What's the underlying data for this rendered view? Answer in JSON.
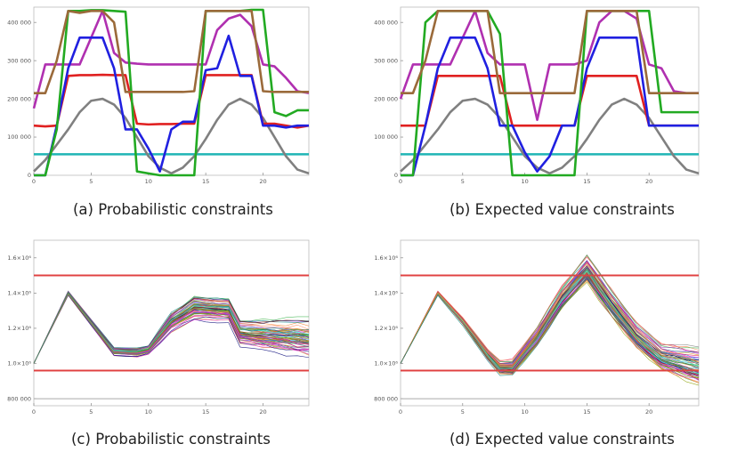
{
  "captions": {
    "a": "(a) Probabilistic constraints",
    "b": "(b) Expected value constraints",
    "c": "(c) Probabilistic constraints",
    "d": "(d) Expected value constraints"
  },
  "chart_data": [
    {
      "id": "a",
      "type": "line",
      "title": "",
      "xlabel": "",
      "ylabel": "",
      "xlim": [
        0,
        24
      ],
      "ylim": [
        0,
        440000
      ],
      "xticks": [
        "0",
        "5",
        "10",
        "15",
        "20"
      ],
      "yticks": [
        "0",
        "100 000",
        "200 000",
        "300 000",
        "400 000"
      ],
      "grid": false,
      "series": [
        {
          "color": "#1fb5b5",
          "x": [
            0,
            24
          ],
          "y": [
            55000,
            55000
          ]
        },
        {
          "color": "#808080",
          "x": [
            0,
            1,
            2,
            3,
            4,
            5,
            6,
            7,
            8,
            9,
            10,
            11,
            12,
            13,
            14,
            15,
            16,
            17,
            18,
            19,
            20,
            21,
            22,
            23,
            24
          ],
          "y": [
            10000,
            40000,
            80000,
            120000,
            165000,
            195000,
            200000,
            185000,
            150000,
            100000,
            50000,
            20000,
            5000,
            20000,
            50000,
            95000,
            145000,
            185000,
            200000,
            185000,
            150000,
            100000,
            50000,
            15000,
            5000
          ]
        },
        {
          "color": "#e02020",
          "x": [
            0,
            1,
            2,
            3,
            4,
            5,
            6,
            7,
            8,
            9,
            10,
            11,
            12,
            13,
            14,
            15,
            16,
            17,
            18,
            19,
            20,
            21,
            22,
            23,
            24
          ],
          "y": [
            130000,
            128000,
            130000,
            260000,
            262000,
            262000,
            263000,
            262000,
            262000,
            135000,
            133000,
            134000,
            134000,
            135000,
            135000,
            262000,
            262000,
            262000,
            262000,
            262000,
            135000,
            135000,
            130000,
            125000,
            130000
          ]
        },
        {
          "color": "#b030b0",
          "x": [
            0,
            1,
            2,
            3,
            4,
            5,
            6,
            7,
            8,
            9,
            10,
            11,
            12,
            13,
            14,
            15,
            16,
            17,
            18,
            19,
            20,
            21,
            22,
            23,
            24
          ],
          "y": [
            175000,
            290000,
            290000,
            290000,
            290000,
            360000,
            430000,
            320000,
            295000,
            292000,
            290000,
            290000,
            290000,
            290000,
            290000,
            290000,
            380000,
            410000,
            420000,
            390000,
            290000,
            285000,
            255000,
            220000,
            215000
          ]
        },
        {
          "color": "#2020e0",
          "x": [
            0,
            1,
            2,
            3,
            4,
            5,
            6,
            7,
            8,
            9,
            10,
            11,
            12,
            13,
            14,
            15,
            16,
            17,
            18,
            19,
            20,
            21,
            22,
            23,
            24
          ],
          "y": [
            0,
            0,
            130000,
            280000,
            360000,
            360000,
            360000,
            280000,
            120000,
            120000,
            70000,
            10000,
            120000,
            140000,
            140000,
            275000,
            280000,
            365000,
            260000,
            260000,
            130000,
            130000,
            125000,
            130000,
            130000
          ]
        },
        {
          "color": "#22aa22",
          "x": [
            0,
            1,
            2,
            3,
            4,
            5,
            6,
            7,
            8,
            9,
            10,
            11,
            12,
            13,
            14,
            15,
            16,
            17,
            18,
            19,
            20,
            21,
            22,
            23,
            24
          ],
          "y": [
            0,
            0,
            120000,
            430000,
            430000,
            432000,
            432000,
            430000,
            428000,
            10000,
            5000,
            0,
            0,
            0,
            0,
            430000,
            430000,
            430000,
            430000,
            433000,
            433000,
            165000,
            155000,
            170000,
            170000
          ]
        },
        {
          "color": "#9a6a3a",
          "x": [
            0,
            1,
            2,
            3,
            4,
            5,
            6,
            7,
            8,
            9,
            10,
            11,
            12,
            13,
            14,
            15,
            16,
            17,
            18,
            19,
            20,
            21,
            22,
            23,
            24
          ],
          "y": [
            215000,
            215000,
            300000,
            430000,
            425000,
            430000,
            430000,
            400000,
            218000,
            218000,
            218000,
            218000,
            218000,
            218000,
            220000,
            430000,
            430000,
            430000,
            430000,
            430000,
            220000,
            218000,
            218000,
            218000,
            218000
          ]
        }
      ]
    },
    {
      "id": "b",
      "type": "line",
      "title": "",
      "xlabel": "",
      "ylabel": "",
      "xlim": [
        0,
        24
      ],
      "ylim": [
        0,
        440000
      ],
      "xticks": [
        "0",
        "5",
        "10",
        "15",
        "20"
      ],
      "yticks": [
        "0",
        "100 000",
        "200 000",
        "300 000",
        "400 000"
      ],
      "grid": false,
      "series": [
        {
          "color": "#1fb5b5",
          "x": [
            0,
            24
          ],
          "y": [
            55000,
            55000
          ]
        },
        {
          "color": "#808080",
          "x": [
            0,
            1,
            2,
            3,
            4,
            5,
            6,
            7,
            8,
            9,
            10,
            11,
            12,
            13,
            14,
            15,
            16,
            17,
            18,
            19,
            20,
            21,
            22,
            23,
            24
          ],
          "y": [
            10000,
            40000,
            80000,
            120000,
            165000,
            195000,
            200000,
            185000,
            150000,
            100000,
            50000,
            20000,
            5000,
            20000,
            50000,
            95000,
            145000,
            185000,
            200000,
            185000,
            150000,
            100000,
            50000,
            15000,
            5000
          ]
        },
        {
          "color": "#e02020",
          "x": [
            0,
            1,
            2,
            3,
            4,
            5,
            6,
            7,
            8,
            9,
            10,
            11,
            12,
            13,
            14,
            15,
            16,
            17,
            18,
            19,
            20,
            21,
            22,
            23,
            24
          ],
          "y": [
            130000,
            130000,
            130000,
            260000,
            260000,
            260000,
            260000,
            260000,
            260000,
            130000,
            130000,
            130000,
            130000,
            130000,
            130000,
            260000,
            260000,
            260000,
            260000,
            260000,
            130000,
            130000,
            130000,
            130000,
            130000
          ]
        },
        {
          "color": "#b030b0",
          "x": [
            0,
            1,
            2,
            3,
            4,
            5,
            6,
            7,
            8,
            9,
            10,
            11,
            12,
            13,
            14,
            15,
            16,
            17,
            18,
            19,
            20,
            21,
            22,
            23,
            24
          ],
          "y": [
            200000,
            290000,
            290000,
            290000,
            290000,
            360000,
            430000,
            320000,
            290000,
            290000,
            290000,
            145000,
            290000,
            290000,
            290000,
            300000,
            400000,
            430000,
            430000,
            410000,
            290000,
            280000,
            220000,
            215000,
            215000
          ]
        },
        {
          "color": "#2020e0",
          "x": [
            0,
            1,
            2,
            3,
            4,
            5,
            6,
            7,
            8,
            9,
            10,
            11,
            12,
            13,
            14,
            15,
            16,
            17,
            18,
            19,
            20,
            21,
            22,
            23,
            24
          ],
          "y": [
            0,
            0,
            130000,
            280000,
            360000,
            360000,
            360000,
            280000,
            130000,
            130000,
            60000,
            10000,
            50000,
            130000,
            130000,
            280000,
            360000,
            360000,
            360000,
            360000,
            130000,
            130000,
            130000,
            130000,
            130000
          ]
        },
        {
          "color": "#22aa22",
          "x": [
            0,
            1,
            2,
            3,
            4,
            5,
            6,
            7,
            8,
            9,
            10,
            11,
            12,
            13,
            14,
            15,
            16,
            17,
            18,
            19,
            20,
            21,
            22,
            23,
            24
          ],
          "y": [
            0,
            0,
            400000,
            430000,
            430000,
            430000,
            430000,
            430000,
            370000,
            0,
            0,
            0,
            0,
            0,
            0,
            430000,
            430000,
            430000,
            430000,
            430000,
            430000,
            165000,
            165000,
            165000,
            165000
          ]
        },
        {
          "color": "#9a6a3a",
          "x": [
            0,
            1,
            2,
            3,
            4,
            5,
            6,
            7,
            8,
            9,
            10,
            11,
            12,
            13,
            14,
            15,
            16,
            17,
            18,
            19,
            20,
            21,
            22,
            23,
            24
          ],
          "y": [
            215000,
            215000,
            300000,
            430000,
            430000,
            430000,
            430000,
            430000,
            215000,
            215000,
            215000,
            215000,
            215000,
            215000,
            215000,
            430000,
            430000,
            430000,
            430000,
            430000,
            215000,
            215000,
            215000,
            215000,
            215000
          ]
        }
      ]
    },
    {
      "id": "c",
      "type": "line",
      "title": "",
      "xlabel": "",
      "ylabel": "",
      "xlim": [
        0,
        24
      ],
      "ylim": [
        760000,
        1700000
      ],
      "xticks": [
        "0",
        "5",
        "10",
        "15",
        "20"
      ],
      "yticks": [
        "800 000",
        "1.0×10⁶",
        "1.2×10⁶",
        "1.4×10⁶",
        "1.6×10⁶"
      ],
      "grid": false,
      "bounds": [
        {
          "color": "#e04040",
          "y": 1500000
        },
        {
          "color": "#e04040",
          "y": 960000
        },
        {
          "color": "#aaaaaa",
          "y": 800000
        }
      ],
      "ensemble": {
        "count": 70,
        "x": [
          0,
          3,
          7,
          9,
          10,
          12,
          14,
          17,
          18,
          24
        ],
        "mean": [
          1000000,
          1400000,
          1070000,
          1065000,
          1080000,
          1240000,
          1320000,
          1310000,
          1180000,
          1150000
        ],
        "spread": [
          0,
          15000,
          30000,
          35000,
          35000,
          80000,
          100000,
          100000,
          110000,
          170000
        ]
      }
    },
    {
      "id": "d",
      "type": "line",
      "title": "",
      "xlabel": "",
      "ylabel": "",
      "xlim": [
        0,
        24
      ],
      "ylim": [
        760000,
        1700000
      ],
      "xticks": [
        "0",
        "5",
        "10",
        "15",
        "20"
      ],
      "yticks": [
        "800 000",
        "1.0×10⁶",
        "1.2×10⁶",
        "1.4×10⁶",
        "1.6×10⁶"
      ],
      "grid": false,
      "bounds": [
        {
          "color": "#e04040",
          "y": 1500000
        },
        {
          "color": "#e04040",
          "y": 960000
        },
        {
          "color": "#aaaaaa",
          "y": 800000
        }
      ],
      "ensemble": {
        "count": 70,
        "x": [
          0,
          3,
          5,
          7,
          8,
          9,
          11,
          13,
          15,
          17,
          19,
          21,
          24
        ],
        "mean": [
          1000000,
          1400000,
          1240000,
          1050000,
          975000,
          975000,
          1150000,
          1370000,
          1530000,
          1330000,
          1150000,
          1030000,
          970000
        ],
        "spread": [
          0,
          15000,
          30000,
          50000,
          60000,
          70000,
          90000,
          110000,
          130000,
          130000,
          120000,
          120000,
          170000
        ]
      }
    }
  ]
}
